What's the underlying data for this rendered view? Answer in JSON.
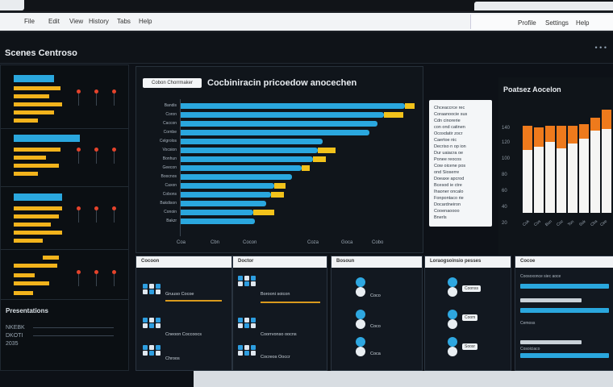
{
  "browser": {
    "menu_items": [
      "File",
      "Edit",
      "View",
      "History",
      "Tabs",
      "Help"
    ],
    "right_menu": [
      "Profile",
      "Settings",
      "Help"
    ]
  },
  "header": {
    "title": "Scenes Centroso",
    "more": "• • •"
  },
  "left_panel": {
    "section_title": "Presentations",
    "info_lines": [
      "NKEBK",
      "DKOTI",
      "2035"
    ]
  },
  "main_chart": {
    "pill_label": "Cobon Chorrmaker",
    "title": "Cocbiniracin pricoedow anocechen",
    "row_labels": [
      "Bandis",
      "Coron",
      "Caccon",
      "Cornbe",
      "Celgrolos",
      "Vocsion",
      "Bonhun",
      "Geecon",
      "Boocnos",
      "Caxon",
      "Cobons",
      "Bakdison",
      "Conoin",
      "Bakzr"
    ],
    "x_ticks": [
      "Coa",
      "Cbn",
      "Cocon",
      "Coza",
      "Goca",
      "Cobo"
    ]
  },
  "legend": {
    "lines": [
      "Chceaccrce rec",
      "Coraanoocie sus",
      "Cdn cinorerie",
      "con ond catinen",
      "Ocoxdatir zocr",
      "Caertoe nic",
      "Decriso n op ion",
      "Dur uaiacra oe",
      "Ponee reocos",
      "Cow oicene pos",
      "ond Sioserre",
      "Doeaxe apcrod",
      "Bcesod ie ctre",
      "Ihaoner oncalo",
      "Fonpontaco rie",
      "Docardneiron",
      "Cooenaoooo",
      "Bnerls"
    ]
  },
  "right_chart": {
    "title": "Poatsez Aocelon",
    "y_labels": [
      "140",
      "120",
      "100",
      "80",
      "60",
      "40",
      "20"
    ],
    "x_labels": [
      "Cok",
      "Cos",
      "Bon",
      "Coc",
      "Ton",
      "Sok",
      "Cba",
      "Cee",
      "Mok"
    ]
  },
  "cards": [
    {
      "title": "Cocoon",
      "rows": [
        "Gruuso Cocoe",
        "Cneoon Coccoocs",
        "Chroos"
      ]
    },
    {
      "title": "Doctor",
      "rows": [
        "Borooni soicon",
        "Coorrvonso oocns",
        "Cocreos Ooccr"
      ]
    },
    {
      "title": "Bosoun",
      "rows": [
        "Coco",
        "Coco",
        "Coca"
      ]
    },
    {
      "title": "Loraogsoinsio pesses",
      "rows": [
        "Coonss",
        "Coom",
        "Soosr"
      ]
    },
    {
      "title": "Cocoe",
      "rows": [
        "Coosoxonce siec aoce",
        "Cemoss",
        "Cosoiciaco"
      ]
    }
  ]
}
